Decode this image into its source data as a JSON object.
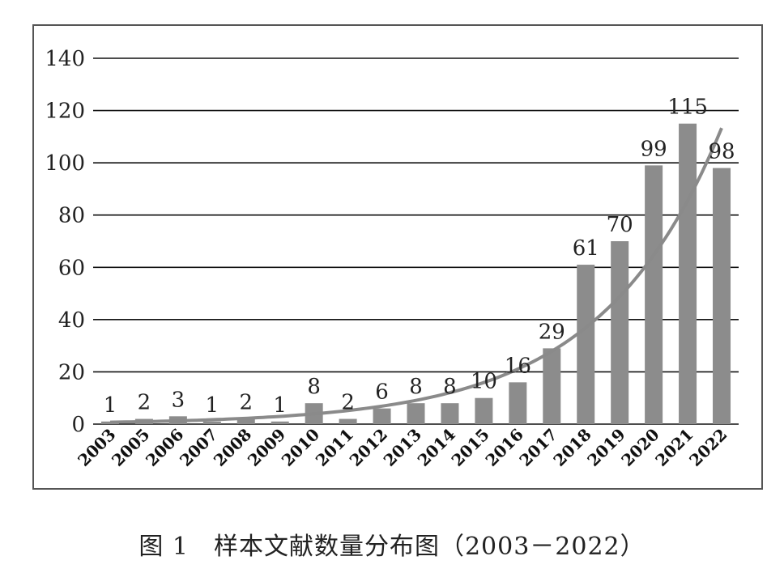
{
  "caption": "图 1　样本文献数量分布图（2003－2022）",
  "chart_data": {
    "type": "bar",
    "title": "",
    "xlabel": "",
    "ylabel": "",
    "categories": [
      "2003",
      "2005",
      "2006",
      "2007",
      "2008",
      "2009",
      "2010",
      "2011",
      "2012",
      "2013",
      "2014",
      "2015",
      "2016",
      "2017",
      "2018",
      "2019",
      "2020",
      "2021",
      "2022"
    ],
    "series": [
      {
        "values": [
          1,
          2,
          3,
          1,
          2,
          1,
          8,
          2,
          6,
          8,
          8,
          10,
          16,
          29,
          61,
          70,
          99,
          115,
          98
        ]
      }
    ],
    "trendline": {
      "type": "exponential",
      "color": "#8a8a8a"
    },
    "ylim": [
      0,
      140
    ],
    "yticks": [
      0,
      20,
      40,
      60,
      80,
      100,
      120,
      140
    ],
    "grid": true,
    "legend": "none",
    "bar_color": "#8c8c8c",
    "gridline_color": "#111111"
  }
}
